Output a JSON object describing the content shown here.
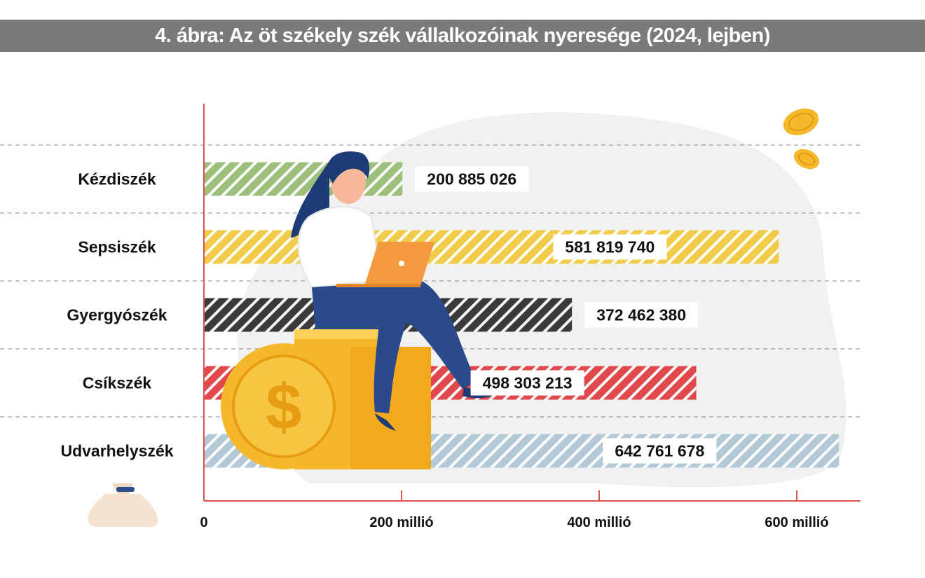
{
  "header": {
    "title": "4. ábra: Az öt székely szék vállalkozóinak nyeresége (2024, lejben)"
  },
  "chart_data": {
    "type": "bar",
    "orientation": "horizontal",
    "title": "4. ábra: Az öt székely szék vállalkozóinak nyeresége (2024, lejben)",
    "categories": [
      "Kézdiszék",
      "Sepsiszék",
      "Gyergyószék",
      "Csíkszék",
      "Udvarhelyszék"
    ],
    "values": [
      200885026,
      581819740,
      372462380,
      498303213,
      642761678
    ],
    "value_labels": [
      "200 885 026",
      "581 819 740",
      "372 462 380",
      "498 303 213",
      "642 761 678"
    ],
    "colors": [
      "#9dbf7c",
      "#f1cc4a",
      "#3a3a3a",
      "#e0484c",
      "#b3c9d6"
    ],
    "xlim": [
      0,
      650000000
    ],
    "x_ticks": [
      0,
      200000000,
      400000000,
      600000000
    ],
    "x_tick_labels": [
      "0",
      "200 millió",
      "400 millió",
      "600 millió"
    ],
    "xlabel": "",
    "ylabel": "",
    "grid": "horizontal dashed separators",
    "legend": "none",
    "axis_color": "#e05252"
  }
}
